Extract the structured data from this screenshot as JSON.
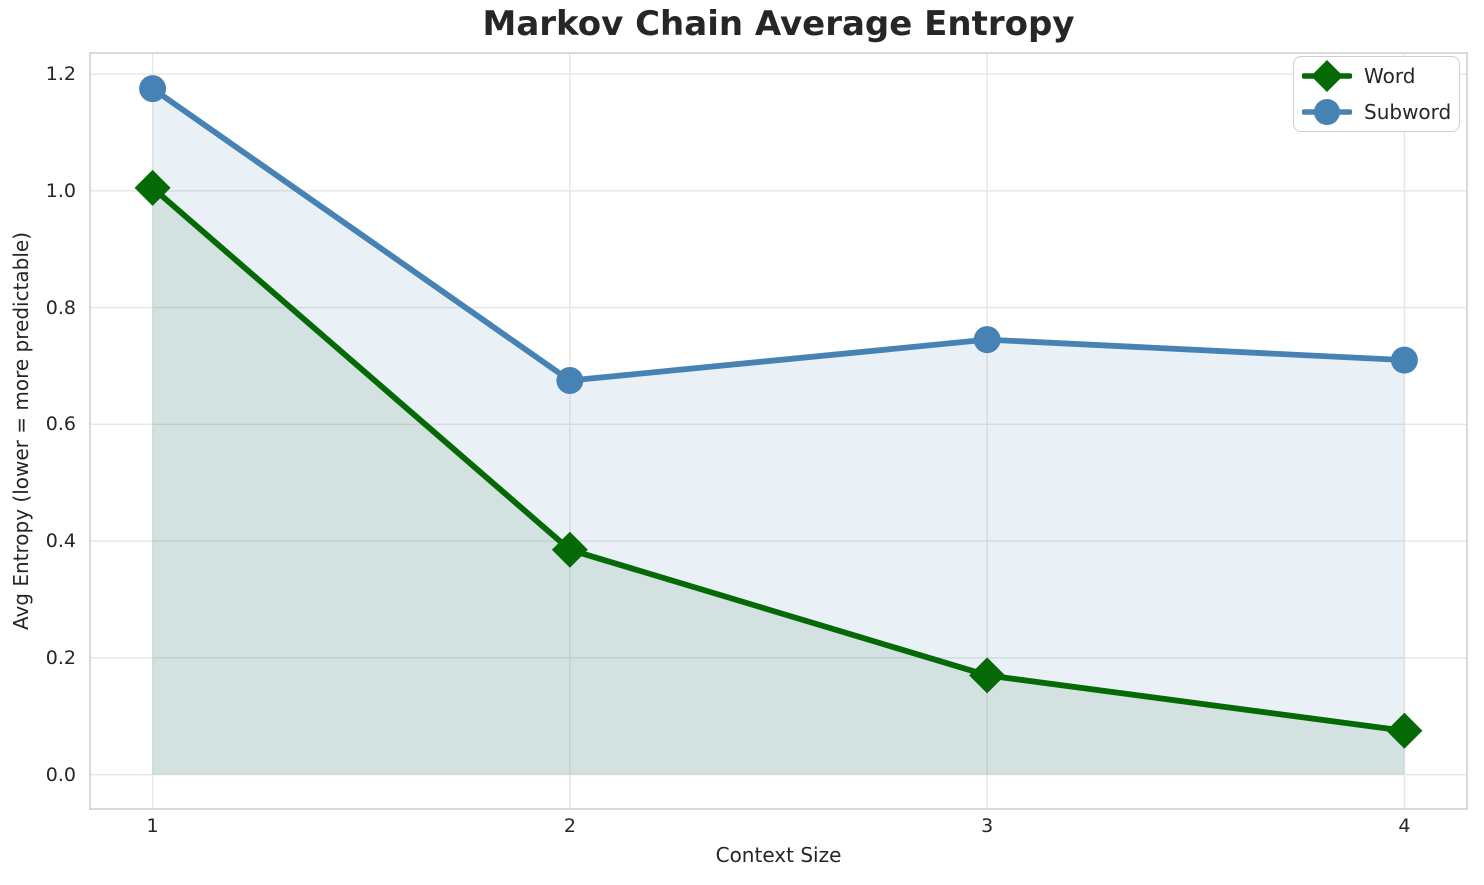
{
  "chart_data": {
    "type": "line",
    "title": "Markov Chain Average Entropy",
    "xlabel": "Context Size",
    "ylabel": "Avg Entropy (lower = more predictable)",
    "x": [
      1,
      2,
      3,
      4
    ],
    "series": [
      {
        "name": "Word",
        "marker": "diamond",
        "color": "#056905",
        "fill_alpha": 0.1,
        "values": [
          1.005,
          0.385,
          0.17,
          0.075
        ]
      },
      {
        "name": "Subword",
        "marker": "circle",
        "color": "#4682b4",
        "fill_alpha": 0.12,
        "values": [
          1.175,
          0.675,
          0.745,
          0.71
        ]
      }
    ],
    "fill_baseline": 0,
    "xticks": [
      1,
      2,
      3,
      4
    ],
    "xtick_labels": [
      "1",
      "2",
      "3",
      "4"
    ],
    "yticks": [
      0.0,
      0.2,
      0.4,
      0.6,
      0.8,
      1.0,
      1.2
    ],
    "ytick_labels": [
      "0.0",
      "0.2",
      "0.4",
      "0.6",
      "0.8",
      "1.0",
      "1.2"
    ],
    "xlim": [
      0.85,
      4.15
    ],
    "ylim": [
      -0.059,
      1.236
    ],
    "grid": true,
    "legend_position": "upper right",
    "colors": {
      "background": "#ffffff",
      "grid": "#e6e6e6",
      "axes_border": "#d0d0d0",
      "text": "#262626"
    }
  }
}
